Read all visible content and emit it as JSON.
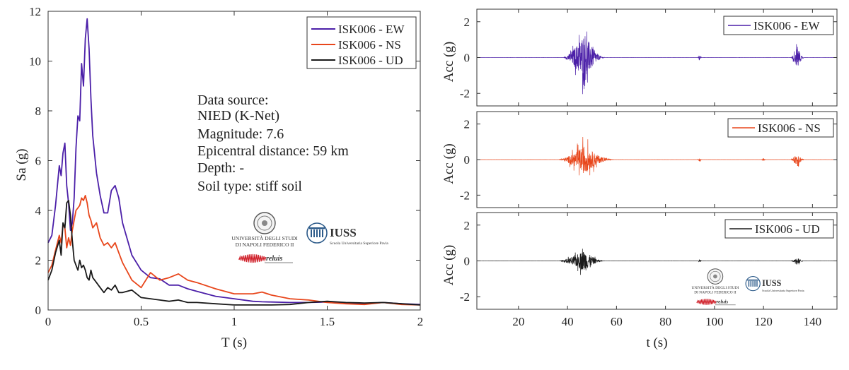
{
  "colors": {
    "ew": "#4b1fa8",
    "ns": "#e8461b",
    "ud": "#1a1a1a",
    "axis": "#333333",
    "iuss": "#2d5b8a",
    "reluis": "#d0202a"
  },
  "logos": {
    "unina_line1": "UNIVERSITÀ DEGLI STUDI",
    "unina_line2": "DI NAPOLI FEDERICO II",
    "iuss_name": "IUSS",
    "iuss_sub": "Scuola Universitaria Superiore Pavia",
    "reluis": "reluis"
  },
  "chart_data": [
    {
      "type": "line",
      "title": "",
      "xlabel": "T (s)",
      "ylabel": "Sa (g)",
      "xlim": [
        0,
        2
      ],
      "ylim": [
        0,
        12
      ],
      "xticks": [
        "0",
        "0.5",
        "1",
        "1.5",
        "2"
      ],
      "yticks": [
        "0",
        "2",
        "4",
        "6",
        "8",
        "10",
        "12"
      ],
      "grid": false,
      "legend": "top-right",
      "annotations": [
        "Data source:",
        "NIED (K-Net)",
        "Magnitude: 7.6",
        "Epicentral distance: 59 km",
        "Depth: -",
        "Soil type: stiff soil"
      ],
      "x": [
        0,
        0.02,
        0.04,
        0.06,
        0.07,
        0.08,
        0.09,
        0.1,
        0.11,
        0.12,
        0.13,
        0.14,
        0.15,
        0.16,
        0.17,
        0.18,
        0.19,
        0.2,
        0.21,
        0.22,
        0.23,
        0.24,
        0.26,
        0.28,
        0.3,
        0.32,
        0.34,
        0.36,
        0.38,
        0.4,
        0.45,
        0.5,
        0.55,
        0.6,
        0.65,
        0.7,
        0.75,
        0.8,
        0.9,
        1.0,
        1.1,
        1.15,
        1.2,
        1.3,
        1.4,
        1.5,
        1.6,
        1.7,
        1.8,
        1.9,
        2.0
      ],
      "series": [
        {
          "name": "ISK006 - EW",
          "values": [
            2.7,
            3.0,
            4.2,
            5.8,
            5.4,
            6.3,
            6.7,
            5.0,
            4.3,
            3.2,
            3.5,
            4.5,
            6.5,
            7.8,
            7.6,
            9.9,
            9.0,
            10.9,
            11.7,
            10.5,
            8.5,
            7.0,
            5.5,
            4.6,
            3.9,
            3.9,
            4.8,
            5.0,
            4.5,
            3.5,
            2.2,
            1.6,
            1.3,
            1.25,
            1.0,
            1.0,
            0.85,
            0.75,
            0.55,
            0.45,
            0.35,
            0.33,
            0.32,
            0.3,
            0.3,
            0.32,
            0.28,
            0.25,
            0.3,
            0.25,
            0.22
          ]
        },
        {
          "name": "ISK006 - NS",
          "values": [
            1.5,
            1.8,
            2.4,
            3.0,
            2.7,
            3.4,
            3.3,
            2.5,
            2.9,
            2.6,
            3.2,
            3.6,
            4.0,
            4.1,
            4.2,
            4.5,
            4.4,
            4.6,
            4.3,
            3.8,
            3.6,
            3.3,
            3.5,
            2.9,
            2.6,
            2.7,
            2.5,
            2.7,
            2.3,
            1.9,
            1.2,
            0.9,
            1.5,
            1.2,
            1.3,
            1.45,
            1.2,
            1.1,
            0.85,
            0.65,
            0.65,
            0.72,
            0.6,
            0.45,
            0.4,
            0.3,
            0.25,
            0.22,
            0.3,
            0.22,
            0.2
          ]
        },
        {
          "name": "ISK006 - UD",
          "values": [
            1.2,
            1.6,
            2.3,
            2.8,
            2.2,
            3.5,
            3.3,
            4.3,
            4.4,
            3.8,
            2.8,
            2.0,
            1.8,
            1.6,
            2.0,
            1.7,
            1.8,
            1.6,
            1.3,
            1.2,
            1.6,
            1.3,
            1.1,
            0.9,
            0.7,
            0.9,
            0.8,
            1.0,
            0.7,
            0.7,
            0.8,
            0.5,
            0.45,
            0.4,
            0.35,
            0.4,
            0.3,
            0.3,
            0.25,
            0.2,
            0.2,
            0.2,
            0.2,
            0.22,
            0.3,
            0.35,
            0.3,
            0.28,
            0.3,
            0.25,
            0.2
          ]
        }
      ]
    },
    {
      "type": "line",
      "title": "",
      "xlabel": "",
      "ylabel": "Acc (g)",
      "xlim": [
        3,
        150
      ],
      "ylim": [
        -2.7,
        2.7
      ],
      "yticks": [
        "-2",
        "0",
        "2"
      ],
      "grid": false,
      "legend": "top-right",
      "series": [
        {
          "name": "ISK006 - EW",
          "peak": 2.7,
          "bursts": [
            {
              "t": [
                38,
                56
              ],
              "amp": 2.6,
              "peak_t": 47
            },
            {
              "t": [
                93,
                95
              ],
              "amp": 0.4,
              "peak_t": 94
            },
            {
              "t": [
                131,
                137
              ],
              "amp": 1.2,
              "peak_t": 134
            }
          ]
        }
      ]
    },
    {
      "type": "line",
      "title": "",
      "xlabel": "",
      "ylabel": "Acc (g)",
      "xlim": [
        3,
        150
      ],
      "ylim": [
        -2.7,
        2.7
      ],
      "yticks": [
        "-2",
        "0",
        "2"
      ],
      "grid": false,
      "legend": "top-right",
      "series": [
        {
          "name": "ISK006 - NS",
          "peak": 1.5,
          "bursts": [
            {
              "t": [
                36,
                60
              ],
              "amp": 1.5,
              "peak_t": 47
            },
            {
              "t": [
                93,
                95
              ],
              "amp": 0.3,
              "peak_t": 94
            },
            {
              "t": [
                119,
                121
              ],
              "amp": 0.2,
              "peak_t": 120
            },
            {
              "t": [
                131,
                137
              ],
              "amp": 0.75,
              "peak_t": 134
            }
          ]
        }
      ]
    },
    {
      "type": "line",
      "title": "",
      "xlabel": "t (s)",
      "ylabel": "Acc (g)",
      "xlim": [
        3,
        150
      ],
      "ylim": [
        -2.7,
        2.7
      ],
      "xticks": [
        "20",
        "40",
        "60",
        "80",
        "100",
        "120",
        "140"
      ],
      "yticks": [
        "-2",
        "0",
        "2"
      ],
      "grid": false,
      "legend": "top-right",
      "series": [
        {
          "name": "ISK006 - UD",
          "peak": 1.1,
          "bursts": [
            {
              "t": [
                36,
                56
              ],
              "amp": 1.1,
              "peak_t": 47
            },
            {
              "t": [
                93,
                95
              ],
              "amp": 0.15,
              "peak_t": 94
            },
            {
              "t": [
                131,
                137
              ],
              "amp": 0.3,
              "peak_t": 134
            }
          ]
        }
      ]
    }
  ]
}
